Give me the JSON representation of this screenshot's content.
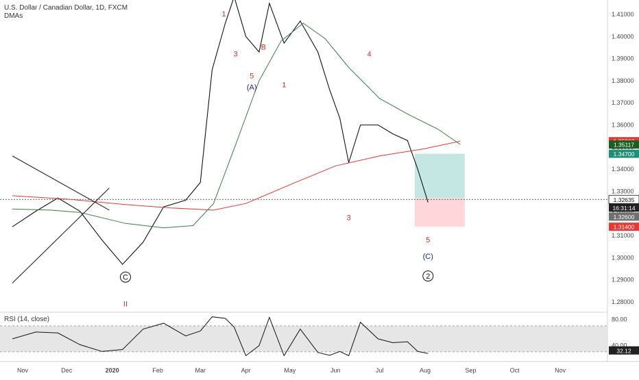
{
  "header": {
    "title": "U.S. Dollar / Canadian Dollar, 1D, FXCM",
    "indicator": "DMAs"
  },
  "rsi": {
    "label": "RSI (14, close)",
    "ticks": [
      "80.00",
      "40.00"
    ],
    "current": "32.12",
    "upper_band": 70,
    "lower_band": 30,
    "range": [
      15,
      90
    ]
  },
  "chart_data": {
    "type": "line",
    "title": "U.S. Dollar / Canadian Dollar, 1D, FXCM",
    "ylim": [
      1.275,
      1.418
    ],
    "yticks": [
      "1.41000",
      "1.40000",
      "1.39000",
      "1.38000",
      "1.37000",
      "1.36000",
      "1.35000",
      "1.34000",
      "1.33000",
      "1.32000",
      "1.31000",
      "1.30000",
      "1.29000",
      "1.28000"
    ],
    "xticks": [
      "Nov",
      "Dec",
      "2020",
      "Feb",
      "Mar",
      "Apr",
      "May",
      "Jun",
      "Jul",
      "Aug",
      "Sep",
      "Oct",
      "Nov",
      "Dec"
    ],
    "grid": false,
    "series": [
      {
        "name": "",
        "color": "#111111",
        "x": [
          "Oct 25",
          "Nov 10",
          "Nov 25",
          "Dec 10",
          "Dec 25",
          "Jan 8",
          "Jan 22",
          "Feb 5",
          "Feb 20",
          "Mar 1",
          "Mar 9",
          "Mar 18",
          "Mar 24",
          "Apr 1",
          "Apr 10",
          "Apr 17",
          "Apr 27",
          "May 8",
          "May 20",
          "May 28",
          "Jun 4",
          "Jun 10",
          "Jun 18",
          "Jun 30",
          "Jul 10",
          "Jul 20",
          "Jul 27",
          "Aug 3"
        ],
        "values": [
          1.314,
          1.321,
          1.327,
          1.321,
          1.308,
          1.297,
          1.307,
          1.323,
          1.326,
          1.334,
          1.385,
          1.406,
          1.418,
          1.4,
          1.393,
          1.415,
          1.397,
          1.407,
          1.393,
          1.376,
          1.363,
          1.343,
          1.36,
          1.36,
          1.356,
          1.353,
          1.34,
          1.325
        ]
      },
      {
        "name": "",
        "color": "#e53935",
        "x": [
          "Oct 25",
          "Dec 1",
          "Jan 10",
          "Feb 10",
          "Mar 10",
          "Apr 1",
          "May 1",
          "Jun 1",
          "Jul 1",
          "Aug 1",
          "Aug 25"
        ],
        "values": [
          1.328,
          1.3265,
          1.324,
          1.3225,
          1.3215,
          1.3245,
          1.333,
          1.3415,
          1.346,
          1.3493,
          1.3527
        ]
      },
      {
        "name": "",
        "color": "#3d7a4a",
        "x": [
          "Oct 25",
          "Nov 20",
          "Dec 10",
          "Jan 10",
          "Feb 5",
          "Feb 25",
          "Mar 10",
          "Mar 25",
          "Apr 10",
          "Apr 25",
          "May 10",
          "May 25",
          "Jun 10",
          "Jul 1",
          "Jul 20",
          "Aug 10",
          "Aug 25"
        ],
        "values": [
          1.322,
          1.3215,
          1.3205,
          1.3155,
          1.3135,
          1.3145,
          1.3245,
          1.351,
          1.38,
          1.398,
          1.406,
          1.399,
          1.386,
          1.372,
          1.365,
          1.358,
          1.3512
        ]
      }
    ],
    "trendlines": [
      {
        "x": [
          "Oct 25",
          "Dec 30"
        ],
        "values": [
          1.346,
          1.3215
        ],
        "color": "#222222"
      },
      {
        "x": [
          "Oct 25",
          "Dec 30"
        ],
        "values": [
          1.2885,
          1.3315
        ],
        "color": "#222222"
      }
    ],
    "hline": 1.32635,
    "position": {
      "x": [
        "Jul 25",
        "Aug 28"
      ],
      "entry": 1.327,
      "target": 1.347,
      "stop": 1.314
    },
    "price_labels": [
      {
        "text": "1.35268",
        "value": 1.35268,
        "bg": "#e53935",
        "fg": "#ffffff"
      },
      {
        "text": "1.35117",
        "value": 1.35117,
        "bg": "#1b5e20",
        "fg": "#ffffff"
      },
      {
        "text": "1.34700",
        "value": 1.347,
        "bg": "#1f8f77",
        "fg": "#ffffff"
      },
      {
        "text": "1.32635",
        "value": 1.32635,
        "bg": "#ffffff",
        "fg": "#111111",
        "border": "#111111"
      },
      {
        "text": "16:31:14",
        "value": 1.32635,
        "bg": "#222222",
        "fg": "#ffffff",
        "offset_rows": 1
      },
      {
        "text": "1.32600",
        "value": 1.326,
        "bg": "#707070",
        "fg": "#ffffff",
        "offset_rows": 2
      },
      {
        "text": "1.31400",
        "value": 1.314,
        "bg": "#e53935",
        "fg": "#ffffff"
      }
    ],
    "annotations": [
      {
        "text": "1",
        "x": "Mar 17",
        "y": 1.409,
        "color": "#d32f2f"
      },
      {
        "text": "3",
        "x": "Mar 25",
        "y": 1.391,
        "color": "#d32f2f"
      },
      {
        "text": "5",
        "x": "Apr 5",
        "y": 1.381,
        "color": "#d32f2f"
      },
      {
        "text": "B",
        "x": "Apr 13",
        "y": 1.394,
        "color": "#d32f2f"
      },
      {
        "text": "(A)",
        "x": "Apr 5",
        "y": 1.376,
        "color": "#1a237e"
      },
      {
        "text": "1",
        "x": "Apr 27",
        "y": 1.377,
        "color": "#d32f2f"
      },
      {
        "text": "4",
        "x": "Jun 24",
        "y": 1.391,
        "color": "#d32f2f"
      },
      {
        "text": "3",
        "x": "Jun 10",
        "y": 1.317,
        "color": "#d32f2f"
      },
      {
        "text": "5",
        "x": "Aug 3",
        "y": 1.307,
        "color": "#d32f2f"
      },
      {
        "text": "(C)",
        "x": "Aug 3",
        "y": 1.2995,
        "color": "#1a237e"
      },
      {
        "text": "C",
        "x": "Jan 10",
        "y": 1.29,
        "color": "#111111",
        "circle": true
      },
      {
        "text": "2",
        "x": "Aug 3",
        "y": 1.2905,
        "color": "#111111",
        "circle": true
      },
      {
        "text": "II",
        "x": "Jan 10",
        "y": 1.278,
        "color": "#d32f2f"
      }
    ]
  }
}
